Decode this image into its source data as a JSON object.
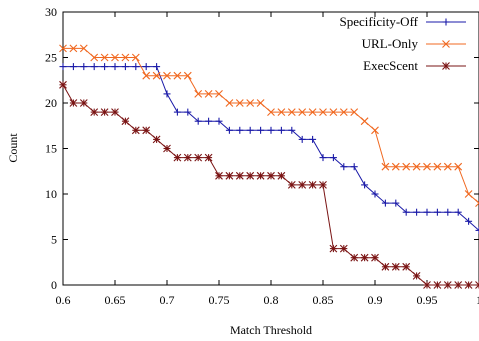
{
  "chart_data": {
    "type": "line",
    "title": "",
    "xlabel": "Match Threshold",
    "ylabel": "Count",
    "xlim": [
      0.6,
      1.0
    ],
    "ylim": [
      0,
      30
    ],
    "grid": false,
    "legend_position": "top-right",
    "x_ticks": [
      0.6,
      0.65,
      0.7,
      0.75,
      0.8,
      0.85,
      0.9,
      0.95,
      1.0
    ],
    "x_tick_labels": [
      "0.6",
      "0.65",
      "0.7",
      "0.75",
      "0.8",
      "0.85",
      "0.9",
      "0.95",
      "1"
    ],
    "y_ticks": [
      0,
      5,
      10,
      15,
      20,
      25,
      30
    ],
    "y_tick_labels": [
      "0",
      "5",
      "10",
      "15",
      "20",
      "25",
      "30"
    ],
    "x": [
      0.6,
      0.61,
      0.62,
      0.63,
      0.64,
      0.65,
      0.66,
      0.67,
      0.68,
      0.69,
      0.7,
      0.71,
      0.72,
      0.73,
      0.74,
      0.75,
      0.76,
      0.77,
      0.78,
      0.79,
      0.8,
      0.81,
      0.82,
      0.83,
      0.84,
      0.85,
      0.86,
      0.87,
      0.88,
      0.89,
      0.9,
      0.91,
      0.92,
      0.93,
      0.94,
      0.95,
      0.96,
      0.97,
      0.98,
      0.99,
      1.0
    ],
    "series": [
      {
        "name": "Specificity-Off",
        "color": "#1a1aa8",
        "marker": "plus",
        "values": [
          24,
          24,
          24,
          24,
          24,
          24,
          24,
          24,
          24,
          24,
          21,
          19,
          19,
          18,
          18,
          18,
          17,
          17,
          17,
          17,
          17,
          17,
          17,
          16,
          16,
          14,
          14,
          13,
          13,
          11,
          10,
          9,
          9,
          8,
          8,
          8,
          8,
          8,
          8,
          7,
          6
        ]
      },
      {
        "name": "URL-Only",
        "color": "#f06820",
        "marker": "x",
        "values": [
          26,
          26,
          26,
          25,
          25,
          25,
          25,
          25,
          23,
          23,
          23,
          23,
          23,
          21,
          21,
          21,
          20,
          20,
          20,
          20,
          19,
          19,
          19,
          19,
          19,
          19,
          19,
          19,
          19,
          18,
          17,
          13,
          13,
          13,
          13,
          13,
          13,
          13,
          13,
          10,
          9
        ]
      },
      {
        "name": "ExecScent",
        "color": "#7a1414",
        "marker": "star",
        "values": [
          22,
          20,
          20,
          19,
          19,
          19,
          18,
          17,
          17,
          16,
          15,
          14,
          14,
          14,
          14,
          12,
          12,
          12,
          12,
          12,
          12,
          12,
          11,
          11,
          11,
          11,
          4,
          4,
          3,
          3,
          3,
          2,
          2,
          2,
          1,
          0,
          0,
          0,
          0,
          0,
          0
        ]
      }
    ]
  }
}
